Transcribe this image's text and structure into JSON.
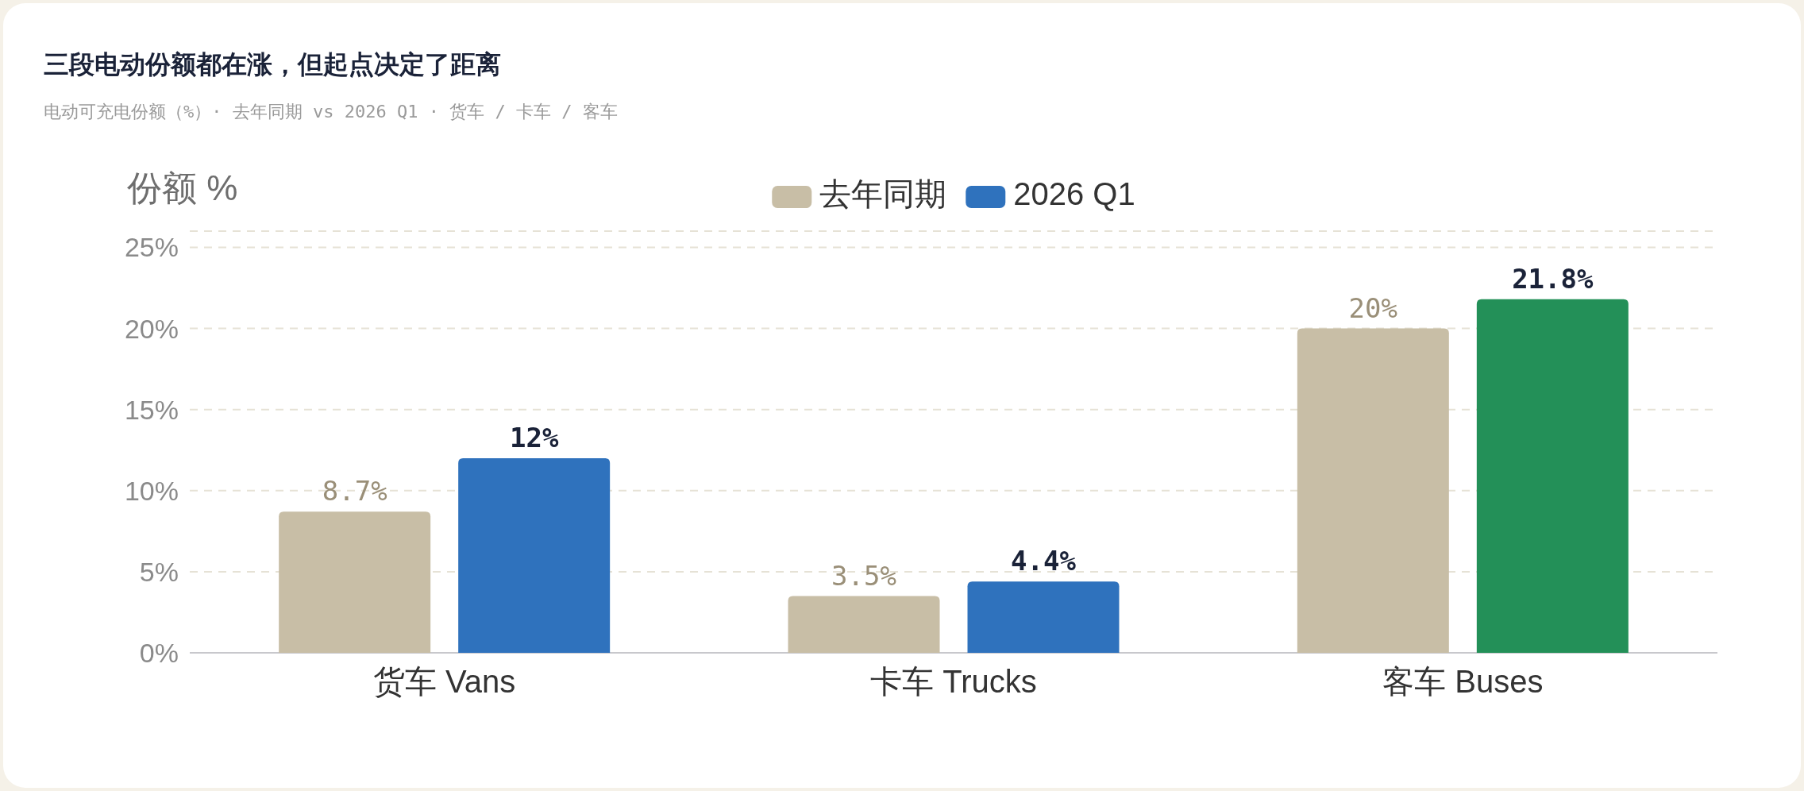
{
  "chart_data": {
    "type": "bar",
    "title": "三段电动份额都在涨，但起点决定了距离",
    "subtitle": "电动可充电份额（%）· 去年同期 vs 2026 Q1 · 货车 / 卡车 / 客车",
    "ylabel": "份额 %",
    "categories": [
      "货车 Vans",
      "卡车 Trucks",
      "客车 Buses"
    ],
    "series": [
      {
        "name": "去年同期",
        "color": "#c8bea6",
        "values": [
          8.7,
          3.5,
          20
        ],
        "value_labels": [
          "8.7%",
          "3.5%",
          "20%"
        ]
      },
      {
        "name": "2026 Q1",
        "colors": [
          "#2f72bd",
          "#2f72bd",
          "#239058"
        ],
        "values": [
          12,
          4.4,
          21.8
        ],
        "value_labels": [
          "12%",
          "4.4%",
          "21.8%"
        ]
      }
    ],
    "ylim": [
      0,
      26
    ],
    "yticks": [
      {
        "value": 0,
        "label": "0%"
      },
      {
        "value": 5,
        "label": "5%"
      },
      {
        "value": 10,
        "label": "10%"
      },
      {
        "value": 15,
        "label": "15%"
      },
      {
        "value": 20,
        "label": "20%"
      },
      {
        "value": 25,
        "label": "25%"
      }
    ],
    "grid": "y",
    "legend": "top"
  }
}
